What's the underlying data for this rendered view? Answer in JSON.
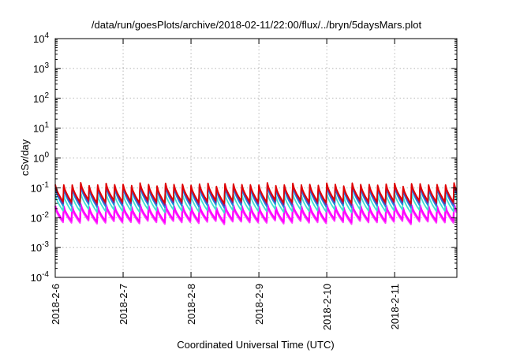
{
  "chart_data": {
    "type": "line",
    "title": "/data/run/goesPlots/archive/2018-02-11/22:00/flux/../bryn/5daysMars.plot",
    "xlabel": "Coordinated Universal Time (UTC)",
    "ylabel": "cSv/day",
    "yscale": "log",
    "ylim": [
      0.0001,
      10000
    ],
    "xlim": [
      "2018-02-06 00:00",
      "2018-02-11 22:00"
    ],
    "grid": true,
    "y_ticks": [
      {
        "base": "10",
        "exp": "-4"
      },
      {
        "base": "10",
        "exp": "-3"
      },
      {
        "base": "10",
        "exp": "-2"
      },
      {
        "base": "10",
        "exp": "-1"
      },
      {
        "base": "10",
        "exp": "0"
      },
      {
        "base": "10",
        "exp": "1"
      },
      {
        "base": "10",
        "exp": "2"
      },
      {
        "base": "10",
        "exp": "3"
      },
      {
        "base": "10",
        "exp": "4"
      }
    ],
    "x_ticks": [
      "2018-2-6",
      "2018-2-7",
      "2018-2-8",
      "2018-2-9",
      "2018-2-10",
      "2018-2-11"
    ],
    "series_style": {
      "colors": [
        "#e00000",
        "#8a1a8a",
        "#1a8ae0",
        "#40e0d0",
        "#ff00ff",
        "#ff40ff"
      ]
    },
    "sawtooth": {
      "cycles_per_day": 8,
      "note_peak_range": [
        0.06,
        0.17
      ],
      "series": [
        {
          "peak": 0.13,
          "trough": 0.035
        },
        {
          "peak": 0.12,
          "trough": 0.03
        },
        {
          "peak": 0.1,
          "trough": 0.025
        },
        {
          "peak": 0.06,
          "trough": 0.017
        },
        {
          "peak": 0.025,
          "trough": 0.008
        },
        {
          "peak": 0.022,
          "trough": 0.007
        }
      ]
    }
  }
}
